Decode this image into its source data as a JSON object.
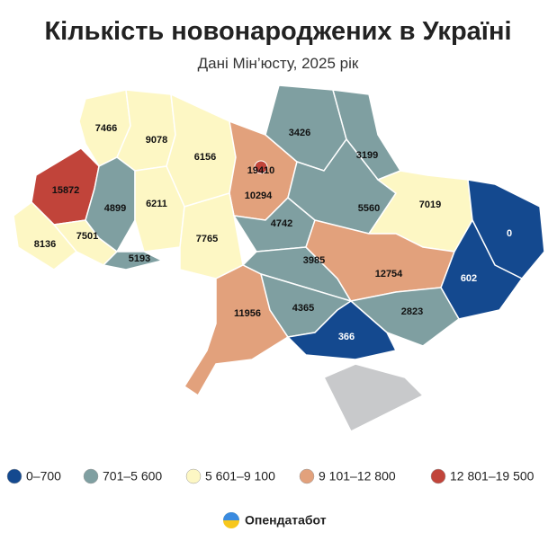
{
  "title": "Кількість новонароджених в Україні",
  "subtitle": "Дані Мін’юсту, 2025 рік",
  "regions": [
    {
      "value": 7466
    },
    {
      "value": 9078
    },
    {
      "value": 6156
    },
    {
      "value": 10294
    },
    {
      "value": 19410
    },
    {
      "value": 3426
    },
    {
      "value": 3199
    },
    {
      "value": 15872
    },
    {
      "value": 4899
    },
    {
      "value": 6211
    },
    {
      "value": 7765
    },
    {
      "value": 4742
    },
    {
      "value": 5560
    },
    {
      "value": 7019
    },
    {
      "value": 0
    },
    {
      "value": 8136
    },
    {
      "value": 7501
    },
    {
      "value": 5193
    },
    {
      "value": 3985
    },
    {
      "value": 12754
    },
    {
      "value": 602
    },
    {
      "value": 11956
    },
    {
      "value": 4365
    },
    {
      "value": 2823
    },
    {
      "value": 366
    }
  ],
  "legend": [
    {
      "label": "0–700",
      "min": 0,
      "max": 700,
      "color": "#14498f"
    },
    {
      "label": "701–5 600",
      "min": 701,
      "max": 5600,
      "color": "#7f9fa1"
    },
    {
      "label": "5 601–9 100",
      "min": 5601,
      "max": 9100,
      "color": "#fdf7c4"
    },
    {
      "label": "9 101–12 800",
      "min": 9101,
      "max": 12800,
      "color": "#e2a17c"
    },
    {
      "label": "12 801–19 500",
      "min": 12801,
      "max": 19500,
      "color": "#c1443a"
    }
  ],
  "logo": "Опендатабот"
}
